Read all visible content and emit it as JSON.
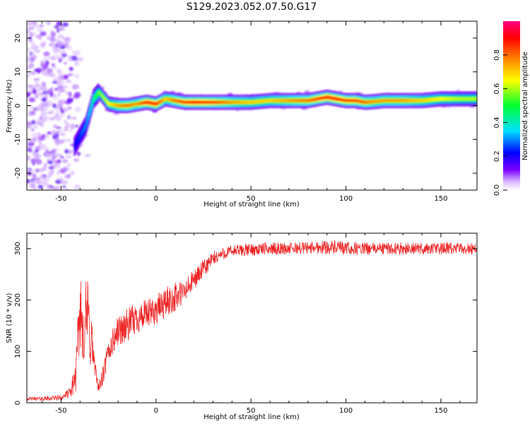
{
  "figure": {
    "title": "S129.2023.052.07.50.G17"
  },
  "chart_data": [
    {
      "type": "heatmap",
      "xlabel": "Height of straight line (km)",
      "ylabel": "Frequency (Hz)",
      "xlim": [
        -68,
        169
      ],
      "ylim": [
        -25,
        25
      ],
      "xticks": [
        -50,
        0,
        50,
        100,
        150
      ],
      "yticks": [
        -20,
        -10,
        0,
        10,
        20
      ],
      "colorbar": {
        "label": "Normalized spectral amplitude",
        "range": [
          0,
          1
        ],
        "ticks": [
          0.0,
          0.2,
          0.4,
          0.6,
          0.8
        ],
        "colormap": [
          "#ffffff",
          "#d9b8ff",
          "#7b00ff",
          "#0000ff",
          "#00e0ff",
          "#00ff30",
          "#ffff00",
          "#ff8000",
          "#ff0000",
          "#ff0080"
        ]
      },
      "ridge": {
        "x": [
          -43,
          -40,
          -37,
          -35,
          -33,
          -30,
          -25,
          -20,
          -15,
          -10,
          -5,
          0,
          5,
          10,
          15,
          20,
          30,
          40,
          50,
          60,
          70,
          80,
          90,
          95,
          100,
          105,
          110,
          115,
          120,
          130,
          140,
          150,
          160,
          169
        ],
        "y": [
          -12,
          -9,
          -6,
          -2,
          2,
          4,
          0.5,
          0,
          0,
          0.5,
          1,
          0.5,
          2,
          1.5,
          1,
          1,
          1,
          1,
          1,
          1.5,
          1.5,
          1.5,
          2.5,
          2,
          1.5,
          1.5,
          1,
          1.2,
          1.5,
          1.5,
          1.5,
          2,
          2,
          2
        ],
        "amplitude": [
          0.2,
          0.25,
          0.3,
          0.35,
          0.45,
          0.55,
          0.65,
          0.75,
          0.8,
          0.75,
          0.9,
          0.9,
          0.7,
          0.8,
          0.85,
          0.9,
          0.85,
          0.75,
          0.7,
          0.7,
          0.75,
          0.8,
          0.9,
          0.9,
          0.85,
          0.85,
          0.8,
          0.75,
          0.75,
          0.75,
          0.7,
          0.65,
          0.6,
          0.6
        ]
      },
      "noise_region": {
        "x": [
          -68,
          -35
        ],
        "y": [
          -25,
          25
        ]
      }
    },
    {
      "type": "line",
      "xlabel": "Height of straight line (km)",
      "ylabel": "SNR (10 * v/v)",
      "xlim": [
        -68,
        169
      ],
      "ylim": [
        0,
        330
      ],
      "xticks": [
        -50,
        0,
        50,
        100,
        150
      ],
      "yticks": [
        0,
        100,
        200,
        300
      ],
      "color": "#ee2222",
      "x": [
        -68,
        -60,
        -50,
        -45,
        -42,
        -40,
        -38,
        -36,
        -34,
        -32,
        -30,
        -28,
        -25,
        -20,
        -15,
        -10,
        -5,
        0,
        5,
        10,
        15,
        20,
        25,
        30,
        35,
        40,
        50,
        60,
        70,
        80,
        90,
        100,
        110,
        120,
        130,
        140,
        150,
        160,
        169
      ],
      "y": [
        8,
        8,
        10,
        20,
        60,
        180,
        150,
        170,
        120,
        60,
        30,
        50,
        100,
        140,
        150,
        165,
        170,
        180,
        195,
        205,
        215,
        240,
        260,
        280,
        290,
        295,
        298,
        300,
        300,
        302,
        303,
        300,
        300,
        300,
        300,
        300,
        300,
        300,
        300
      ],
      "noise_amplitude": [
        3,
        4,
        5,
        10,
        40,
        70,
        80,
        80,
        70,
        20,
        10,
        20,
        25,
        30,
        35,
        30,
        30,
        30,
        30,
        30,
        25,
        20,
        18,
        15,
        12,
        12,
        12,
        12,
        12,
        12,
        14,
        14,
        12,
        12,
        12,
        12,
        12,
        12,
        12
      ]
    }
  ]
}
